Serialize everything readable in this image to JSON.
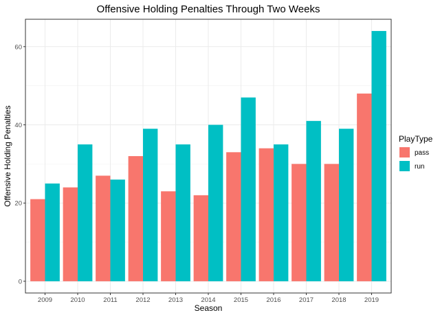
{
  "chart_data": {
    "type": "bar",
    "title": "Offensive Holding Penalties Through Two Weeks",
    "xlabel": "Season",
    "ylabel": "Offensive Holding Penalties",
    "categories": [
      "2009",
      "2010",
      "2011",
      "2012",
      "2013",
      "2014",
      "2015",
      "2016",
      "2017",
      "2018",
      "2019"
    ],
    "series": [
      {
        "name": "pass",
        "color": "#F8766D",
        "values": [
          21,
          24,
          27,
          32,
          23,
          22,
          33,
          34,
          30,
          30,
          48
        ]
      },
      {
        "name": "run",
        "color": "#00BFC4",
        "values": [
          25,
          35,
          26,
          39,
          35,
          40,
          47,
          35,
          41,
          39,
          64
        ]
      }
    ],
    "ylim": [
      -3,
      67
    ],
    "yticks": [
      0,
      20,
      40,
      60
    ],
    "yminor": [
      10,
      30,
      50
    ],
    "grid": true,
    "legend": {
      "title": "PlayType",
      "position": "right"
    }
  }
}
